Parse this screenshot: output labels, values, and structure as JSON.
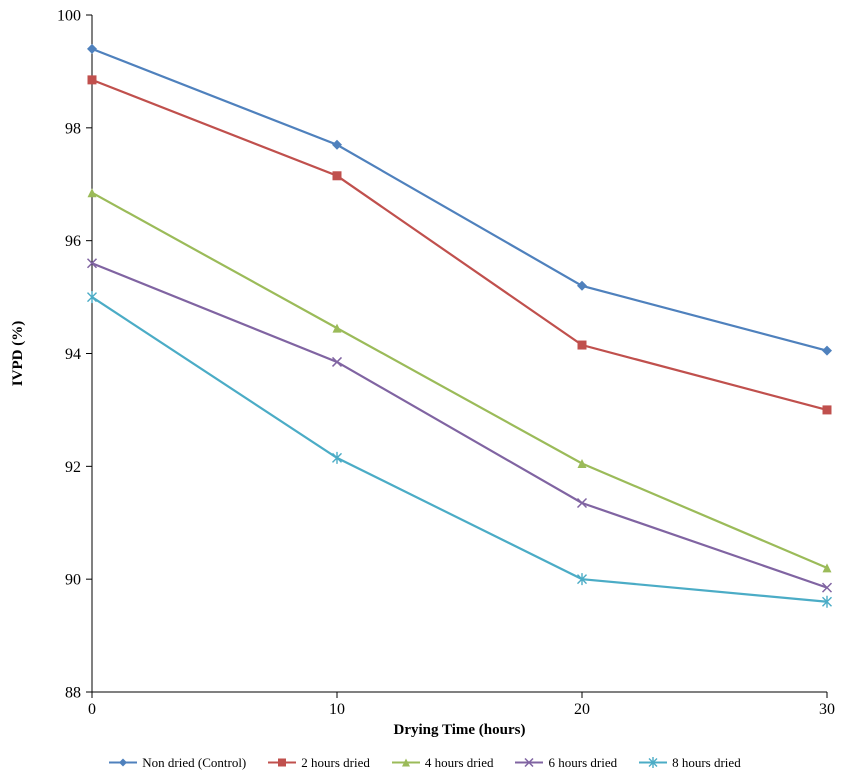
{
  "chart_data": {
    "type": "line",
    "title": "",
    "xlabel": "Drying Time (hours)",
    "ylabel": "IVPD (%)",
    "x": [
      0,
      10,
      20,
      30
    ],
    "xlim": [
      0,
      30
    ],
    "ylim": [
      88,
      100
    ],
    "xticks": [
      0,
      10,
      20,
      30
    ],
    "yticks": [
      88,
      90,
      92,
      94,
      96,
      98,
      100
    ],
    "grid": false,
    "legend_position": "bottom",
    "series": [
      {
        "name": "Non dried (Control)",
        "values": [
          99.4,
          97.7,
          95.2,
          94.05
        ],
        "color": "#4F81BD",
        "marker": "diamond"
      },
      {
        "name": "2 hours dried",
        "values": [
          98.85,
          97.15,
          94.15,
          93.0
        ],
        "color": "#C0504D",
        "marker": "square"
      },
      {
        "name": "4 hours dried",
        "values": [
          96.85,
          94.45,
          92.05,
          90.2
        ],
        "color": "#9BBB59",
        "marker": "triangle"
      },
      {
        "name": "6 hours dried",
        "values": [
          95.6,
          93.85,
          91.35,
          89.85
        ],
        "color": "#8064A2",
        "marker": "x"
      },
      {
        "name": "8 hours dried",
        "values": [
          95.0,
          92.15,
          90.0,
          89.6
        ],
        "color": "#4BACC6",
        "marker": "asterisk"
      }
    ]
  }
}
